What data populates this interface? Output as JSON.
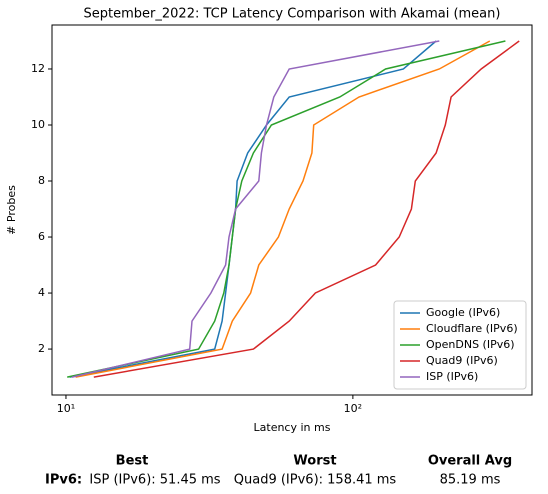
{
  "chart_data": {
    "type": "line",
    "title": "September_2022: TCP Latency Comparison with Akamai (mean)",
    "x_label": "Latency in ms",
    "y_label": "# Probes",
    "xscale": "log",
    "xlim": [
      8.94,
      421
    ],
    "xticks": [
      {
        "value": 10,
        "label": "10¹"
      },
      {
        "value": 100,
        "label": "10²"
      }
    ],
    "ylim": [
      0.36,
      13.57
    ],
    "yticks": [
      2,
      4,
      6,
      8,
      10,
      12
    ],
    "legend": "lower right",
    "series": [
      {
        "name": "Google (IPv6)",
        "color": "#1f77b4",
        "x": [
          10.3,
          33,
          35,
          36,
          37,
          38,
          39,
          39.5,
          43,
          50,
          60,
          150,
          195
        ],
        "values": [
          1,
          2,
          3,
          4,
          5,
          6,
          7,
          8,
          9,
          10,
          11,
          12,
          13
        ]
      },
      {
        "name": "Cloudflare (IPv6)",
        "color": "#ff7f0e",
        "x": [
          10.8,
          35,
          38,
          44,
          47,
          55,
          60,
          67,
          72,
          73,
          105,
          200,
          300
        ],
        "values": [
          1,
          2,
          3,
          4,
          5,
          6,
          7,
          8,
          9,
          10,
          11,
          12,
          13
        ]
      },
      {
        "name": "OpenDNS (IPv6)",
        "color": "#2ca02c",
        "x": [
          10.1,
          29,
          33,
          35.5,
          37,
          38,
          39,
          41,
          45,
          52,
          90,
          130,
          340
        ],
        "values": [
          1,
          2,
          3,
          4,
          5,
          6,
          7,
          8,
          9,
          10,
          11,
          12,
          13
        ]
      },
      {
        "name": "Quad9 (IPv6)",
        "color": "#d62728",
        "x": [
          12.5,
          45,
          60,
          74,
          120,
          145,
          160,
          165,
          195,
          210,
          220,
          280,
          380
        ],
        "values": [
          1,
          2,
          3,
          4,
          5,
          6,
          7,
          8,
          9,
          10,
          11,
          12,
          13
        ]
      },
      {
        "name": "ISP (IPv6)",
        "color": "#9467bd",
        "x": [
          10.5,
          27,
          27.5,
          32,
          36,
          37,
          39,
          47,
          48,
          50,
          53,
          60,
          200
        ],
        "values": [
          1,
          2,
          3,
          4,
          5,
          6,
          7,
          8,
          9,
          10,
          11,
          12,
          13
        ]
      }
    ]
  },
  "summary": {
    "headers": [
      "Best",
      "Worst",
      "Overall Avg"
    ],
    "row_label": "IPv6:",
    "cells": [
      "ISP (IPv6): 51.45 ms",
      "Quad9 (IPv6): 158.41 ms",
      "85.19 ms"
    ]
  }
}
